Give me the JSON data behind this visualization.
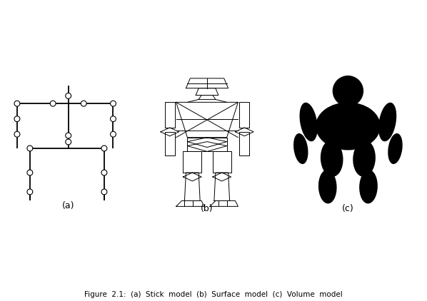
{
  "subtitle": "Figure  2.1:  (a)  Stick  model  (b)  Surface  model  (c)  Volume  model",
  "labels": [
    "(a)",
    "(b)",
    "(c)"
  ],
  "bg_color": "#ffffff",
  "line_color": "#000000",
  "figsize": [
    5.98,
    4.22
  ],
  "dpi": 100
}
